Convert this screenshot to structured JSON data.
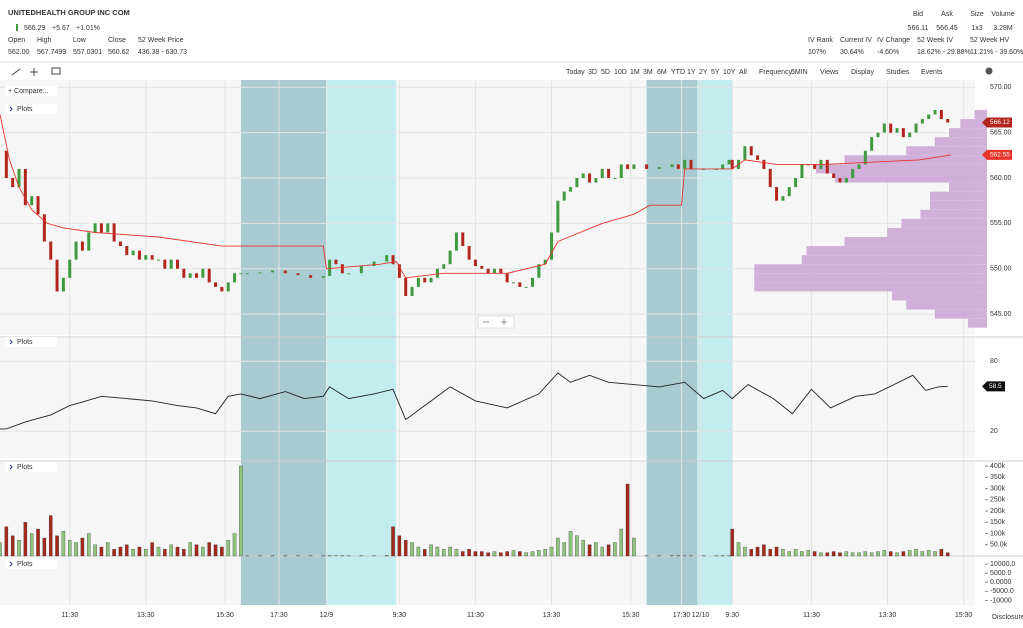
{
  "header": {
    "symbol": "UNITEDHEALTH GROUP INC COM",
    "last": "566.29",
    "change": "+5.67",
    "change_pct": "+1.01%",
    "stats": [
      {
        "label": "Open",
        "value": "562.00"
      },
      {
        "label": "High",
        "value": "567.7499"
      },
      {
        "label": "Low",
        "value": "557.0301"
      },
      {
        "label": "Close",
        "value": "560.62"
      },
      {
        "label": "52 Week Price",
        "value": "436.38 - 630.73"
      }
    ],
    "quote": [
      {
        "label": "Bid",
        "value": "566.11"
      },
      {
        "label": "Ask",
        "value": "566.45"
      },
      {
        "label": "Size",
        "value": "1x3"
      },
      {
        "label": "Volume",
        "value": "3.28M"
      }
    ],
    "iv": [
      {
        "label": "IV Rank",
        "value": "107%"
      },
      {
        "label": "Current IV",
        "value": "30.64%"
      },
      {
        "label": "IV Change",
        "value": "-4.60%"
      },
      {
        "label": "52 Week IV",
        "value": "18.62% - 29.88%"
      },
      {
        "label": "52 Week HV",
        "value": "11.21% - 39.60%"
      }
    ]
  },
  "toolbar": {
    "ranges": [
      "Today",
      "3D",
      "5D",
      "10D",
      "1M",
      "3M",
      "6M",
      "YTD",
      "1Y",
      "2Y",
      "5Y",
      "10Y",
      "All"
    ],
    "frequency_label": "Frequency:",
    "frequency": "5MIN",
    "menus": [
      "Views",
      "Display",
      "Studies",
      "Events"
    ]
  },
  "compare": "+ Compare...",
  "plots_label": "Plots",
  "disclosure": "Disclosure",
  "chart_data": {
    "type": "candlestick",
    "xlim": [
      0,
      307.6
    ],
    "xticks": [
      {
        "value": 22,
        "label": "11:30"
      },
      {
        "value": 46,
        "label": "13:30"
      },
      {
        "value": 71,
        "label": "15:30"
      },
      {
        "value": 88,
        "label": "17:30"
      },
      {
        "value": 103,
        "label": "12/9"
      },
      {
        "value": 126,
        "label": "9:30"
      },
      {
        "value": 150,
        "label": "11:30"
      },
      {
        "value": 174,
        "label": "13:30"
      },
      {
        "value": 199,
        "label": "15:30"
      },
      {
        "value": 215,
        "label": "17:30"
      },
      {
        "value": 221,
        "label": "12/10"
      },
      {
        "value": 231,
        "label": "9:30"
      },
      {
        "value": 256,
        "label": "11:30"
      },
      {
        "value": 280,
        "label": "13:30"
      },
      {
        "value": 304,
        "label": "15:30"
      }
    ],
    "sessions": [
      {
        "start": 76,
        "end": 103,
        "color": "#a8cbd1"
      },
      {
        "start": 103,
        "end": 125,
        "color": "#c3ecee"
      },
      {
        "start": 204,
        "end": 220,
        "color": "#a8cbd1"
      },
      {
        "start": 220,
        "end": 231,
        "color": "#c3ecee"
      }
    ],
    "ylim": [
      542.7,
      570.8
    ],
    "yticks": [
      {
        "value": 570,
        "label": "570.00"
      },
      {
        "value": 565,
        "label": "565.00"
      },
      {
        "value": 560,
        "label": "560.00"
      },
      {
        "value": 555,
        "label": "555.00"
      },
      {
        "value": 550,
        "label": "550.00"
      },
      {
        "value": 545,
        "label": "545.00"
      }
    ],
    "x": [
      0,
      2,
      4,
      6,
      8,
      10,
      12,
      14,
      16,
      18,
      20,
      22,
      24,
      26,
      28,
      30,
      32,
      34,
      36,
      38,
      40,
      42,
      44,
      46,
      48,
      50,
      52,
      54,
      56,
      58,
      60,
      62,
      64,
      66,
      68,
      70,
      72,
      74,
      76,
      78,
      82,
      86,
      90,
      94,
      98,
      102,
      104,
      106,
      108,
      110,
      114,
      118,
      122,
      124,
      126,
      128,
      130,
      132,
      134,
      136,
      138,
      140,
      142,
      144,
      146,
      148,
      150,
      152,
      154,
      156,
      158,
      160,
      162,
      164,
      166,
      168,
      170,
      172,
      174,
      176,
      178,
      180,
      182,
      184,
      186,
      188,
      190,
      192,
      194,
      196,
      198,
      200,
      204,
      208,
      212,
      214,
      216,
      218,
      222,
      226,
      228,
      230,
      231,
      233,
      235,
      237,
      239,
      241,
      243,
      245,
      247,
      249,
      251,
      253,
      255,
      257,
      259,
      261,
      263,
      265,
      267,
      269,
      271,
      273,
      275,
      277,
      279,
      281,
      283,
      285,
      287,
      289,
      291,
      293,
      295,
      297,
      299
    ],
    "close": [
      563,
      560,
      559,
      561,
      557,
      558,
      556,
      553,
      551,
      547.5,
      549,
      551,
      553,
      552,
      554,
      555,
      554,
      555,
      553,
      552.5,
      551.5,
      552,
      551,
      551.5,
      551,
      551,
      550,
      551,
      550,
      549,
      549.5,
      549,
      550,
      548.5,
      548,
      547.5,
      548.5,
      549.5,
      549.5,
      549.5,
      549.6,
      549.8,
      549.5,
      549.3,
      549,
      549.2,
      551,
      550.5,
      549.5,
      549.5,
      550.3,
      550.8,
      551.5,
      550.5,
      549,
      547,
      548,
      549,
      548.5,
      549,
      550,
      550.5,
      552,
      554,
      552.5,
      551,
      550.3,
      550,
      549.5,
      550,
      549.5,
      548.5,
      548.5,
      548,
      548,
      549,
      550.5,
      551,
      554,
      557.5,
      558.5,
      559,
      560,
      560.5,
      559.5,
      560,
      561,
      560,
      560,
      561.5,
      561,
      561.5,
      561,
      561.2,
      561.5,
      561,
      562,
      561,
      561,
      561,
      561.5,
      562,
      561,
      562,
      563.5,
      562.5,
      562,
      561,
      559,
      557.5,
      558,
      559,
      560,
      561.5,
      561.5,
      561,
      562,
      560.5,
      560,
      559.5,
      560,
      561,
      561.5,
      563,
      564.5,
      565,
      566,
      565,
      565.5,
      564.5,
      565,
      566,
      566.5,
      567,
      567.5,
      566.5,
      566.12
    ],
    "up_color": "#3f9a3f",
    "down_color": "#b3261e",
    "last_price": 566.12,
    "last_color": "#b3261e",
    "vwap": {
      "x": [
        0,
        3,
        6,
        10,
        15,
        20,
        30,
        50,
        70,
        75,
        102,
        103,
        120,
        125,
        128,
        140,
        160,
        172,
        176,
        190,
        200,
        205,
        215,
        216,
        231,
        235,
        245,
        260,
        290,
        300
      ],
      "values": [
        567,
        562,
        559,
        556.5,
        555,
        554.5,
        554,
        553.5,
        552.5,
        552.5,
        552.5,
        550,
        550.5,
        550.8,
        549,
        549.5,
        549.5,
        550.5,
        553,
        555,
        556,
        557,
        557,
        561,
        561,
        562,
        561.5,
        561.5,
        562,
        562.55
      ],
      "color": "#e8342a",
      "last": 562.55
    },
    "profile": {
      "color": "#c9a3d4",
      "xlim": [
        0,
        260
      ],
      "levels": [
        567,
        566,
        565,
        564,
        563,
        562,
        561,
        560,
        559,
        558,
        557,
        556,
        555,
        554,
        553,
        552,
        551,
        550,
        549,
        548,
        547,
        546,
        545,
        544
      ],
      "values": [
        13,
        28,
        40,
        55,
        85,
        150,
        180,
        160,
        40,
        60,
        60,
        70,
        90,
        105,
        150,
        190,
        195,
        245,
        245,
        245,
        100,
        85,
        55,
        20
      ]
    },
    "rsi": {
      "color": "#222",
      "ylim": [
        -3,
        100
      ],
      "yticks": [
        80,
        20
      ],
      "last": 58.5,
      "x": [
        0,
        2,
        8,
        16,
        22,
        26,
        32,
        40,
        48,
        56,
        62,
        68,
        72,
        76,
        82,
        90,
        96,
        102,
        104,
        110,
        118,
        124,
        128,
        134,
        142,
        150,
        160,
        170,
        176,
        180,
        186,
        192,
        200,
        208,
        216,
        222,
        228,
        231,
        236,
        244,
        250,
        256,
        262,
        270,
        276,
        282,
        288,
        292,
        296,
        299
      ],
      "values": [
        22,
        22,
        28,
        34,
        42,
        45,
        50,
        48,
        46,
        42,
        40,
        35,
        50,
        52,
        48,
        54,
        48,
        50,
        58,
        48,
        52,
        56,
        30,
        42,
        58,
        46,
        40,
        52,
        70,
        62,
        68,
        62,
        60,
        58,
        62,
        48,
        55,
        48,
        60,
        48,
        35,
        56,
        40,
        50,
        52,
        60,
        68,
        55,
        58,
        58.5
      ]
    },
    "volume": {
      "ylim": [
        0,
        418000
      ],
      "yticks": [
        {
          "value": 400000,
          "label": "400k"
        },
        {
          "value": 350000,
          "label": "350k"
        },
        {
          "value": 300000,
          "label": "300k"
        },
        {
          "value": 250000,
          "label": "250k"
        },
        {
          "value": 200000,
          "label": "200k"
        },
        {
          "value": 150000,
          "label": "150k"
        },
        {
          "value": 100000,
          "label": "100k"
        },
        {
          "value": 50000,
          "label": "50.0k"
        }
      ],
      "values": [
        60000,
        130000,
        90000,
        70000,
        150000,
        100000,
        120000,
        80000,
        180000,
        90000,
        110000,
        70000,
        60000,
        80000,
        100000,
        50000,
        40000,
        60000,
        30000,
        40000,
        50000,
        30000,
        40000,
        30000,
        60000,
        40000,
        30000,
        50000,
        40000,
        30000,
        60000,
        50000,
        40000,
        60000,
        50000,
        40000,
        70000,
        100000,
        400000,
        1000,
        1000,
        1000,
        1000,
        1000,
        1000,
        1000,
        2000,
        1000,
        1000,
        1000,
        1000,
        1000,
        3000,
        130000,
        90000,
        70000,
        60000,
        40000,
        30000,
        50000,
        40000,
        30000,
        40000,
        30000,
        20000,
        30000,
        20000,
        20000,
        15000,
        20000,
        15000,
        20000,
        25000,
        20000,
        15000,
        20000,
        25000,
        30000,
        40000,
        80000,
        60000,
        110000,
        90000,
        70000,
        50000,
        60000,
        40000,
        50000,
        60000,
        120000,
        320000,
        80000,
        1000,
        1000,
        1000,
        1000,
        1000,
        1000,
        1000,
        1000,
        1000,
        1000,
        120000,
        60000,
        40000,
        30000,
        40000,
        50000,
        30000,
        40000,
        30000,
        20000,
        30000,
        20000,
        25000,
        20000,
        15000,
        15000,
        20000,
        15000,
        20000,
        15000,
        15000,
        20000,
        15000,
        20000,
        25000,
        20000,
        15000,
        20000,
        25000,
        30000,
        20000,
        25000,
        20000,
        30000,
        15000
      ]
    },
    "oscillator": {
      "ylim": [
        -12500,
        13900
      ],
      "yticks": [
        {
          "value": 10000,
          "label": "10000.0"
        },
        {
          "value": 5000,
          "label": "5000.0"
        },
        {
          "value": 0,
          "label": "0.0000"
        },
        {
          "value": -5000,
          "label": "-5000.0"
        },
        -10000
      ]
    }
  }
}
